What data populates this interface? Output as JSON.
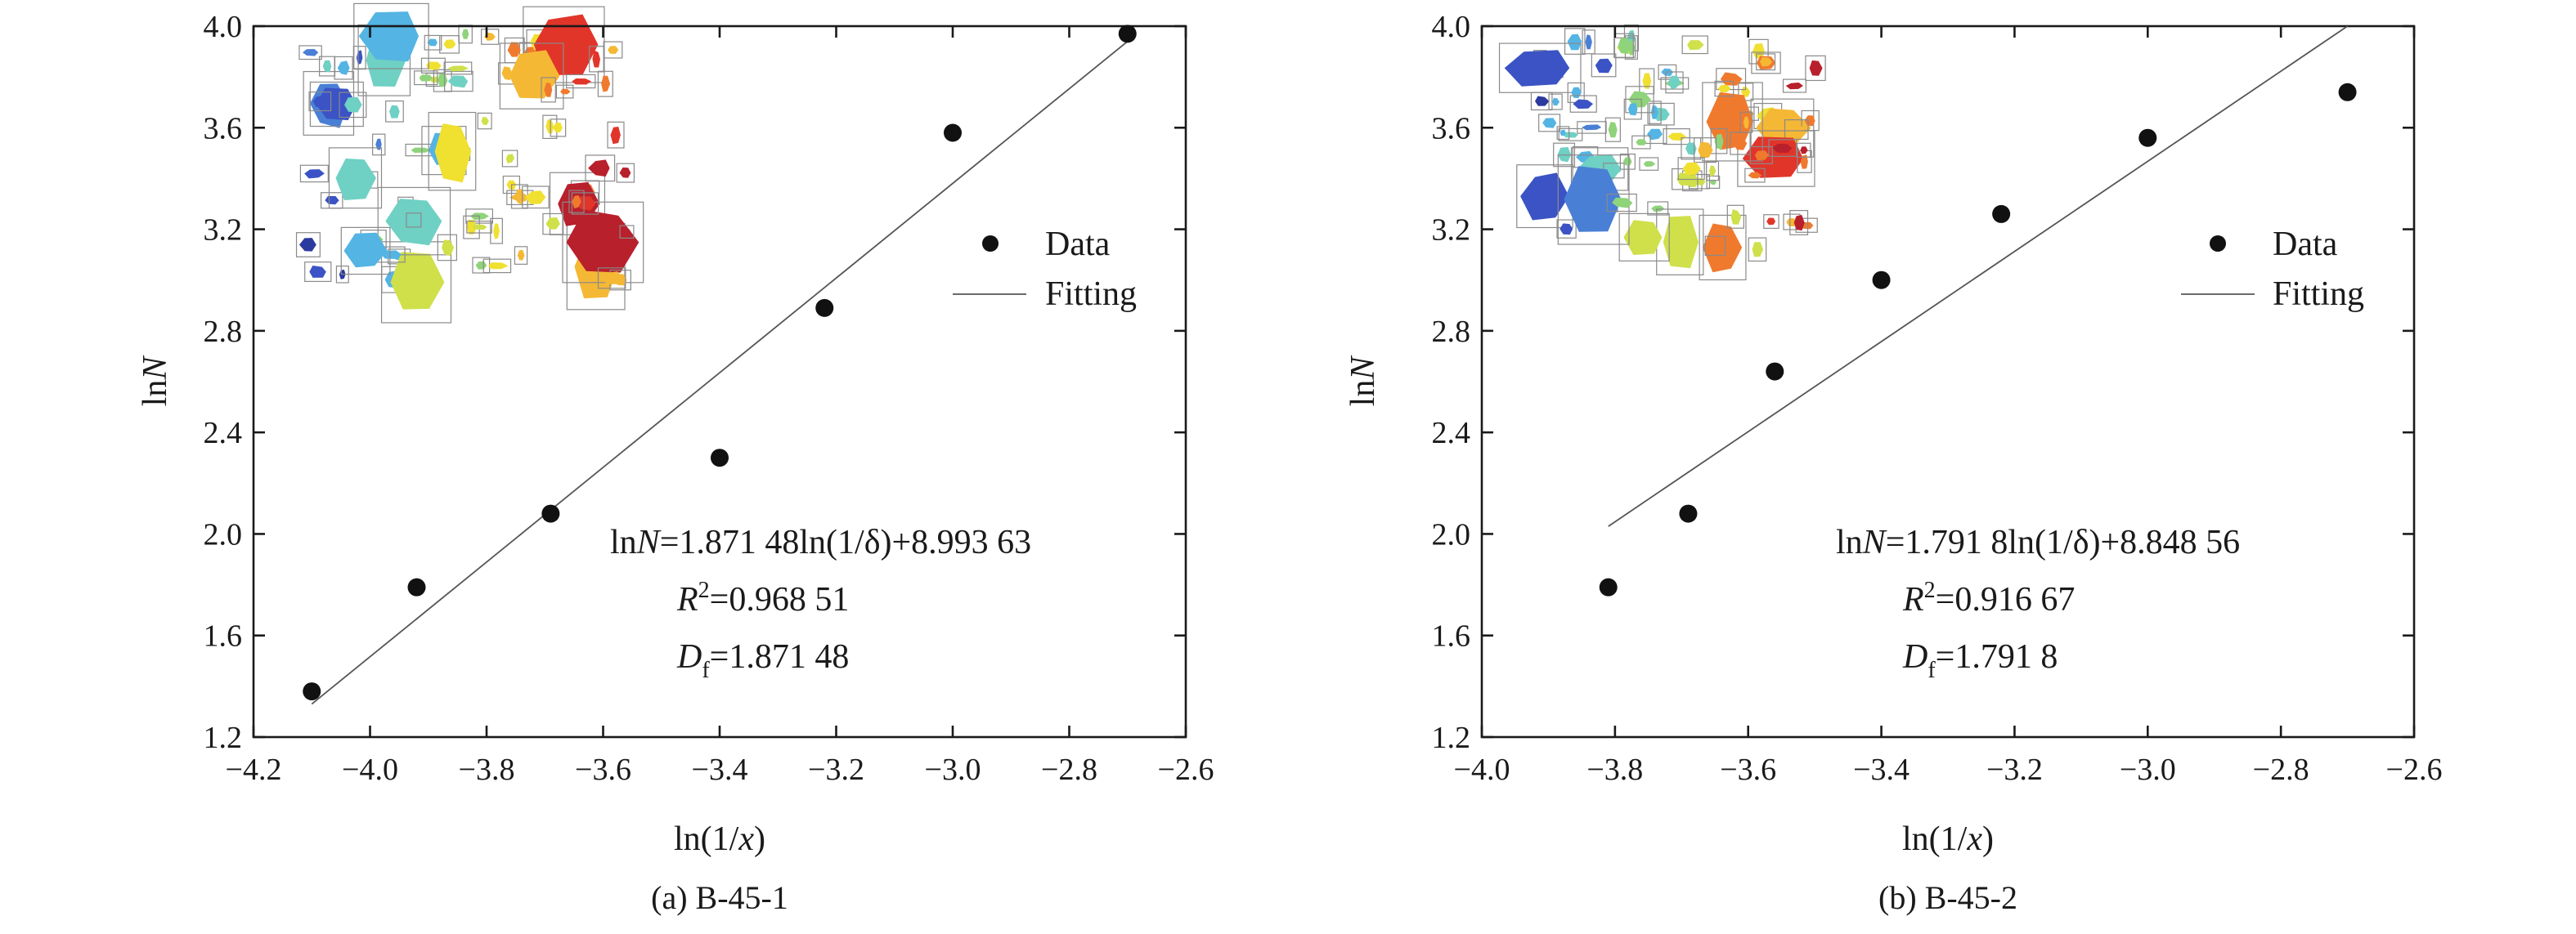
{
  "chart_data": [
    {
      "type": "scatter",
      "caption": "(a) B-45-1",
      "xlabel": "ln(1/x)",
      "ylabel": "lnN",
      "xlim": [
        -4.2,
        -2.6
      ],
      "ylim": [
        1.2,
        4.0
      ],
      "xticks": [
        -4.2,
        -4.0,
        -3.8,
        -3.6,
        -3.4,
        -3.2,
        -3.0,
        -2.8,
        -2.6
      ],
      "xtick_labels": [
        "−4.2",
        "−4.0",
        "−3.8",
        "−3.6",
        "−3.4",
        "−3.2",
        "−3.0",
        "−2.8",
        "−2.6"
      ],
      "yticks": [
        1.2,
        1.6,
        2.0,
        2.4,
        2.8,
        3.2,
        3.6,
        4.0
      ],
      "ytick_labels": [
        "1.2",
        "1.6",
        "2.0",
        "2.4",
        "2.8",
        "3.2",
        "3.6",
        "4.0"
      ],
      "legend": {
        "data": "Data",
        "fitting": "Fitting",
        "placement": "right-middle"
      },
      "series": [
        {
          "name": "Data",
          "x": [
            -4.1,
            -3.92,
            -3.69,
            -3.4,
            -3.22,
            -3.0,
            -2.7
          ],
          "y": [
            1.38,
            1.79,
            2.08,
            2.3,
            2.89,
            3.58,
            3.97
          ]
        },
        {
          "name": "Fitting",
          "x": [
            -4.1,
            -2.7
          ],
          "y": [
            1.33,
            3.94
          ]
        }
      ],
      "annotation": {
        "eq_prefix": "ln",
        "eq_var": "N",
        "eq_rest": "=1.871 48ln(1/δ)+8.993 63",
        "r_var": "R",
        "r_sup": "2",
        "r_rest": "=0.968 51",
        "d_var": "D",
        "d_sub": "f",
        "d_rest": "=1.871 48"
      }
    },
    {
      "type": "scatter",
      "caption": "(b) B-45-2",
      "xlabel": "ln(1/x)",
      "ylabel": "lnN",
      "xlim": [
        -4.0,
        -2.6
      ],
      "ylim": [
        1.2,
        4.0
      ],
      "xticks": [
        -4.0,
        -3.8,
        -3.6,
        -3.4,
        -3.2,
        -3.0,
        -2.8,
        -2.6
      ],
      "xtick_labels": [
        "−4.0",
        "−3.8",
        "−3.6",
        "−3.4",
        "−3.2",
        "−3.0",
        "−2.8",
        "−2.6"
      ],
      "yticks": [
        1.2,
        1.6,
        2.0,
        2.4,
        2.8,
        3.2,
        3.6,
        4.0
      ],
      "ytick_labels": [
        "1.2",
        "1.6",
        "2.0",
        "2.4",
        "2.8",
        "3.2",
        "3.6",
        "4.0"
      ],
      "legend": {
        "data": "Data",
        "fitting": "Fitting",
        "placement": "right-middle"
      },
      "series": [
        {
          "name": "Data",
          "x": [
            -3.81,
            -3.69,
            -3.56,
            -3.4,
            -3.22,
            -3.0,
            -2.7
          ],
          "y": [
            1.79,
            2.08,
            2.64,
            3.0,
            3.26,
            3.56,
            3.74
          ]
        },
        {
          "name": "Fitting",
          "x": [
            -3.81,
            -2.7
          ],
          "y": [
            2.03,
            4.0
          ]
        }
      ],
      "annotation": {
        "eq_prefix": "ln",
        "eq_var": "N",
        "eq_rest": "=1.791 8ln(1/δ)+8.848 56",
        "r_var": "R",
        "r_sup": "2",
        "r_rest": "=0.916 67",
        "d_var": "D",
        "d_sub": "f",
        "d_rest": "=1.791 8"
      }
    }
  ],
  "inset_palette": [
    "#2b3a9e",
    "#3b53c4",
    "#4a7fd6",
    "#54b4e4",
    "#6fd0c4",
    "#8fd37a",
    "#cfe04a",
    "#f0e030",
    "#f5b835",
    "#ef7a2e",
    "#e2352a",
    "#b8202c"
  ]
}
